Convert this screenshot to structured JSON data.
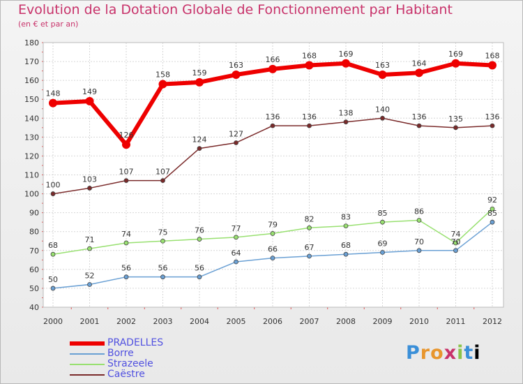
{
  "chart_data": {
    "type": "line",
    "title": "Evolution de la Dotation Globale de Fonctionnement par Habitant",
    "subtitle": "(en € et par an)",
    "xlabel": "",
    "ylabel": "",
    "ylim": [
      40,
      180
    ],
    "yticks": [
      40,
      50,
      60,
      70,
      80,
      90,
      100,
      110,
      120,
      130,
      140,
      150,
      160,
      170,
      180
    ],
    "x": [
      "2000",
      "2001",
      "2002",
      "2003",
      "2004",
      "2005",
      "2006",
      "2007",
      "2008",
      "2009",
      "2010",
      "2011",
      "2012"
    ],
    "grid": true,
    "legend_position": "bottom-left",
    "series": [
      {
        "name": "PRADELLES",
        "color": "#ee0000",
        "values": [
          148,
          149,
          126,
          158,
          159,
          163,
          166,
          168,
          169,
          163,
          164,
          169,
          168
        ],
        "labels": [
          "148",
          "149",
          "126",
          "158",
          "159",
          "163",
          "166",
          "168",
          "169",
          "163",
          "164",
          "169",
          "168"
        ]
      },
      {
        "name": "Borre",
        "color": "#6aa0d4",
        "values": [
          50,
          52,
          56,
          56,
          56,
          64,
          66,
          67,
          68,
          69,
          70,
          70,
          85
        ],
        "labels": [
          "50",
          "52",
          "56",
          "56",
          "56",
          "64",
          "66",
          "67",
          "68",
          "69",
          "70",
          "70",
          "85"
        ]
      },
      {
        "name": "Strazeele",
        "color": "#98e070",
        "values": [
          68,
          71,
          74,
          75,
          76,
          77,
          79,
          82,
          83,
          85,
          86,
          74,
          92
        ],
        "labels": [
          "68",
          "71",
          "74",
          "75",
          "76",
          "77",
          "79",
          "82",
          "83",
          "85",
          "86",
          "74",
          "92"
        ]
      },
      {
        "name": "Caëstre",
        "color": "#7a2a2a",
        "values": [
          100,
          103,
          107,
          107,
          124,
          127,
          136,
          136,
          138,
          140,
          136,
          135,
          136
        ],
        "labels": [
          "100",
          "103",
          "107",
          "107",
          "124",
          "127",
          "136",
          "136",
          "138",
          "140",
          "136",
          "135",
          "136"
        ]
      }
    ]
  },
  "logo": {
    "letters": [
      "P",
      "r",
      "o",
      "x",
      "i",
      "t",
      "i"
    ]
  }
}
